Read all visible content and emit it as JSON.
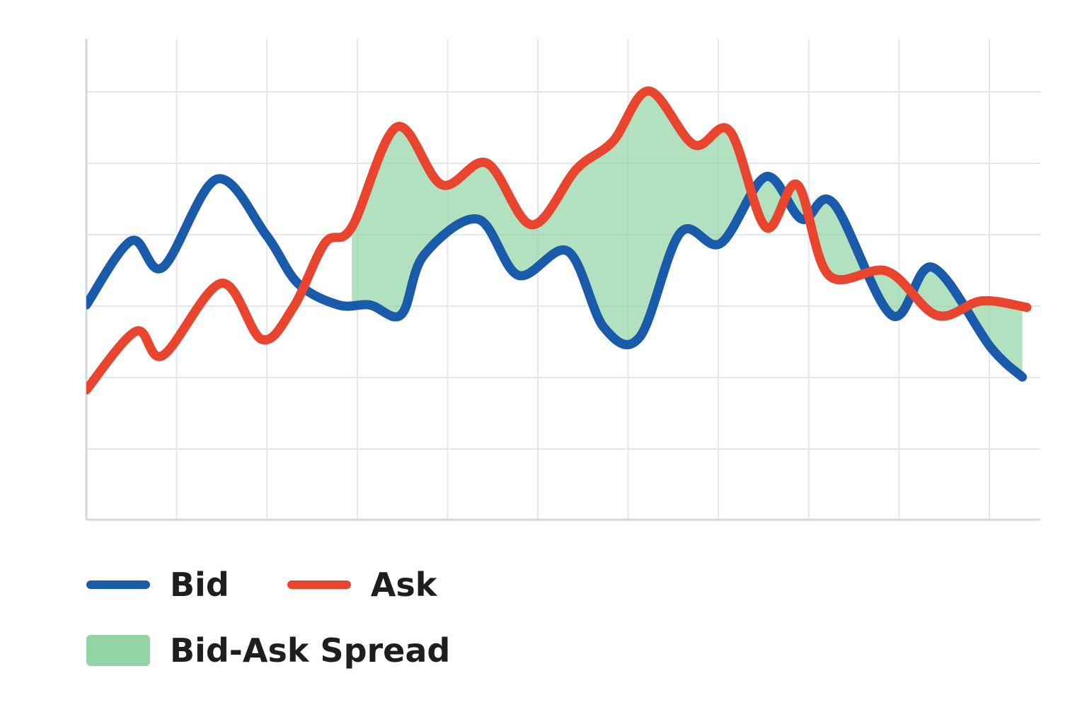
{
  "chart_data": {
    "type": "line",
    "title": "",
    "xlabel": "",
    "ylabel": "",
    "grid": true,
    "legend_position": "bottom-left",
    "x": [
      0,
      0.5,
      1,
      1.5,
      2,
      2.5,
      3,
      3.5,
      4,
      4.5,
      5,
      5.5,
      6,
      6.5,
      7,
      7.5,
      8,
      8.5,
      9,
      9.5,
      10,
      10.5,
      10.4
    ],
    "xlim": [
      0,
      10.6
    ],
    "ylim": [
      0,
      6
    ],
    "series": [
      {
        "name": "Bid",
        "color": "#1a5aab",
        "x": [
          0,
          0.5,
          0.85,
          1.45,
          2.0,
          2.35,
          2.8,
          3.15,
          3.5,
          3.75,
          4.35,
          4.8,
          5.35,
          5.75,
          6.15,
          6.6,
          7.05,
          7.55,
          7.95,
          8.3,
          8.95,
          9.4,
          10.05,
          10.4
        ],
        "y": [
          2.68,
          3.48,
          3.15,
          4.25,
          3.55,
          2.95,
          2.68,
          2.68,
          2.56,
          3.3,
          3.75,
          3.05,
          3.35,
          2.4,
          2.28,
          3.58,
          3.45,
          4.28,
          3.75,
          3.95,
          2.55,
          3.15,
          2.15,
          1.78
        ]
      },
      {
        "name": "Ask",
        "color": "#e8442e",
        "x": [
          0,
          0.55,
          0.85,
          1.5,
          1.95,
          2.3,
          2.65,
          2.95,
          3.45,
          3.95,
          4.45,
          4.95,
          5.45,
          5.85,
          6.25,
          6.75,
          7.15,
          7.55,
          7.9,
          8.25,
          8.9,
          9.45,
          9.95,
          10.45
        ],
        "y": [
          1.62,
          2.35,
          2.05,
          2.95,
          2.25,
          2.65,
          3.45,
          3.65,
          4.9,
          4.18,
          4.45,
          3.68,
          4.38,
          4.72,
          5.35,
          4.68,
          4.85,
          3.65,
          4.18,
          3.05,
          3.1,
          2.55,
          2.73,
          2.65
        ]
      }
    ],
    "spread": {
      "name": "Bid-Ask Spread",
      "color": "#92d4a4",
      "x_start": 2.95,
      "x_end": 10.4
    }
  },
  "legend": [
    {
      "label": "Bid",
      "kind": "line",
      "color": "#1a5aab"
    },
    {
      "label": "Ask",
      "kind": "line",
      "color": "#e8442e"
    },
    {
      "label": "Bid-Ask Spread",
      "kind": "area",
      "color": "#92d4a4"
    }
  ]
}
